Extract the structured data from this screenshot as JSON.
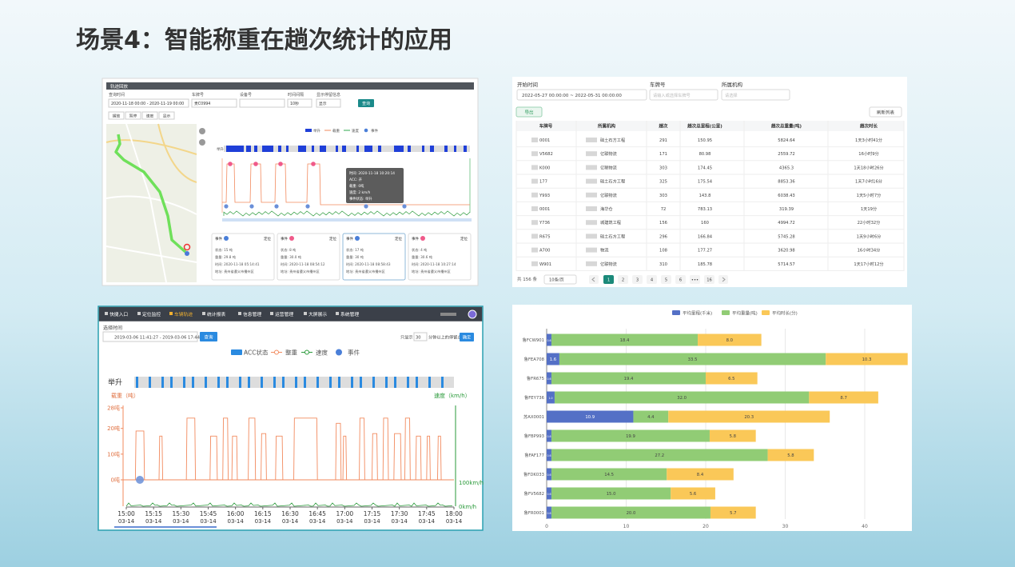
{
  "title": "场景4：智能称重在趟次统计的应用",
  "track_panel": {
    "header": "轨迹回放",
    "filter_labels": [
      "查询时间",
      "车牌号",
      "设备号",
      "时间间隔",
      "显示停留信息"
    ],
    "filter_values": [
      "2020-11-18 00:00 - 2020-11-19 00:00",
      "贵C0994",
      "10秒",
      "显示"
    ],
    "query_button": "查询",
    "toolbar": [
      "播放",
      "暂停",
      "速度",
      "显示"
    ],
    "legend": [
      "举升",
      "载重",
      "速度",
      "事件"
    ],
    "tooltip": [
      "时间: 2020-11-18 10:20:14",
      "ACC: 开",
      "载重: 0吨",
      "速度: 2 km/h",
      "事件状态: 举升"
    ],
    "cards": [
      {
        "title": "事件",
        "action": "定位",
        "lines": [
          "状态: 15 吨",
          "重量: 29.8 吨",
          "时间: 2020-11-18 05:14:41",
          "地址: 贵州省遵义市播州区"
        ]
      },
      {
        "title": "事件",
        "action": "定位",
        "lines": [
          "状态: 8 吨",
          "重量: 30.0 吨",
          "时间: 2020-11-18 08:54:12",
          "地址: 贵州省遵义市播州区"
        ]
      },
      {
        "title": "事件",
        "action": "定位",
        "lines": [
          "状态: 17 吨",
          "重量: 30 吨",
          "时间: 2020-11-18 08:58:43",
          "地址: 贵州省遵义市播州区"
        ]
      },
      {
        "title": "事件",
        "action": "定位",
        "lines": [
          "状态: 4 吨",
          "重量: 30.6 吨",
          "时间: 2020-11-18 10:27:14",
          "地址: 贵州省遵义市播州区"
        ]
      }
    ]
  },
  "table_panel": {
    "filter_labels": [
      "开始时间",
      "车牌号",
      "所属机构"
    ],
    "date_range": "2022-05-27 00:00:00  ~  2022-05-31 00:00:00",
    "plate_placeholder": "请输入或选择车牌号",
    "org_placeholder": "请选择",
    "export_button": "导出",
    "refresh_button": "刷新列表",
    "headers": [
      "车牌号",
      "所属机构",
      "趟次",
      "趟次总里程(公里)",
      "趟次总重量(吨)",
      "趟次时长"
    ],
    "rows": [
      [
        "0001",
        "础土石方工程",
        "291",
        "150.95",
        "5824.64",
        "1天3小时41分"
      ],
      [
        "V5682",
        "亿联物流",
        "171",
        "80.98",
        "2559.72",
        "16小时9分"
      ],
      [
        "K000",
        "亿联物流",
        "303",
        "174.45",
        "4365.3",
        "1天18小时26分"
      ],
      [
        "177",
        "础土石方工程",
        "325",
        "175.54",
        "8853.36",
        "1天7小时16分"
      ],
      [
        "Y993",
        "亿联物流",
        "303",
        "143.8",
        "6038.43",
        "1天5小时7分"
      ],
      [
        "0001",
        "海华仓",
        "72",
        "783.13",
        "319.39",
        "1天19分"
      ],
      [
        "Y736",
        "城建筑工程",
        "156",
        "160",
        "4994.72",
        "22小时32分"
      ],
      [
        "R675",
        "础土石方工程",
        "296",
        "166.84",
        "5745.28",
        "1天9小时6分"
      ],
      [
        "A700",
        "物流",
        "108",
        "177.27",
        "3620.98",
        "16小时34分"
      ],
      [
        "W901",
        "亿联物流",
        "310",
        "185.78",
        "5714.57",
        "1天17小时12分"
      ]
    ],
    "total": "共 156 条",
    "page_size": "10条/页",
    "pages": [
      "1",
      "2",
      "3",
      "4",
      "5",
      "6",
      "•••",
      "16"
    ]
  },
  "trend_panel": {
    "nav": [
      "快捷入口",
      "定位监控",
      "车辆轨迹",
      "统计报表",
      "信息管理",
      "运营管理",
      "大屏展示",
      "系统管理"
    ],
    "time_label": "选择时间",
    "time_range": "2019-03-06 11:41:27 - 2019-03-06 17:44:03",
    "query_button": "查询",
    "stay_prefix": "只显示",
    "stay_value": "30",
    "stay_suffix": "分钟以上的停留点",
    "confirm_button": "确定",
    "legend": [
      "ACC状态",
      "整重",
      "速度",
      "事件"
    ],
    "lift_label": "举升",
    "load_axis_label": "载重（吨）",
    "speed_axis_label": "速度（km/h）",
    "ylim": [
      0,
      28
    ],
    "yticks": [
      {
        "value": 0,
        "label": "0吨"
      },
      {
        "value": 10,
        "label": "10吨"
      },
      {
        "value": 20,
        "label": "20吨"
      },
      {
        "value": 28,
        "label": "28吨"
      }
    ],
    "speed_ticks": [
      "100km/h",
      "0km/h"
    ],
    "xlim": [
      900,
      1080
    ],
    "xticks": [
      {
        "value": 900,
        "label": "15:00"
      },
      {
        "value": 915,
        "label": "15:15"
      },
      {
        "value": 930,
        "label": "15:30"
      },
      {
        "value": 945,
        "label": "15:45"
      },
      {
        "value": 960,
        "label": "16:00"
      },
      {
        "value": 975,
        "label": "16:15"
      },
      {
        "value": 990,
        "label": "16:30"
      },
      {
        "value": 1005,
        "label": "16:45"
      },
      {
        "value": 1020,
        "label": "17:00"
      },
      {
        "value": 1035,
        "label": "17:15"
      },
      {
        "value": 1050,
        "label": "17:30"
      },
      {
        "value": 1065,
        "label": "17:45"
      },
      {
        "value": 1080,
        "label": "18:00"
      }
    ],
    "xtick_date": "03-14",
    "load_pulses": [
      {
        "start": 905,
        "end": 910,
        "peak": 19
      },
      {
        "start": 918,
        "end": 920,
        "peak": 17
      },
      {
        "start": 933,
        "end": 938,
        "peak": 24
      },
      {
        "start": 946,
        "end": 950,
        "peak": 17
      },
      {
        "start": 953,
        "end": 956,
        "peak": 24
      },
      {
        "start": 958,
        "end": 961,
        "peak": 17
      },
      {
        "start": 967,
        "end": 971,
        "peak": 24
      },
      {
        "start": 974,
        "end": 977,
        "peak": 18
      },
      {
        "start": 982,
        "end": 986,
        "peak": 17
      },
      {
        "start": 992,
        "end": 1005,
        "peak": 24
      },
      {
        "start": 1015,
        "end": 1018,
        "peak": 22
      },
      {
        "start": 1019,
        "end": 1021,
        "peak": 17
      },
      {
        "start": 1028,
        "end": 1031,
        "peak": 24
      },
      {
        "start": 1035,
        "end": 1038,
        "peak": 18
      },
      {
        "start": 1041,
        "end": 1044,
        "peak": 24
      },
      {
        "start": 1047,
        "end": 1051,
        "peak": 18
      },
      {
        "start": 1053,
        "end": 1056,
        "peak": 24
      },
      {
        "start": 1059,
        "end": 1062,
        "peak": 17
      },
      {
        "start": 1065,
        "end": 1067,
        "peak": 17
      },
      {
        "start": 1071,
        "end": 1073,
        "peak": 17
      }
    ]
  },
  "bar_chart": {
    "type": "stacked-bar-horizontal",
    "categories": [
      "鲁FCW901",
      "鲁FEA708",
      "鲁FR675",
      "鲁FEY736",
      "苏AX0001",
      "鲁FBP993",
      "鲁FAF177",
      "鲁FDK033",
      "鲁FV5682",
      "鲁FR0001"
    ],
    "series": [
      {
        "name": "平均里程(千米)",
        "color": "#5470c6",
        "values": [
          0.6,
          1.6,
          0.6,
          1.0,
          10.9,
          0.6,
          0.6,
          0.6,
          0.6,
          0.6
        ],
        "value_labels": [
          "0.6",
          "1.6",
          "0.6",
          "1.0",
          "10.9",
          "0.6",
          "0.6",
          "0.6",
          "0.6",
          "0.6"
        ]
      },
      {
        "name": "平均重量(吨)",
        "color": "#91cc75",
        "values": [
          18.4,
          33.5,
          19.4,
          32.0,
          4.4,
          19.9,
          27.2,
          14.5,
          15.0,
          20.0
        ],
        "value_labels": [
          "18.4",
          "33.5",
          "19.4",
          "32.0",
          "4.4",
          "19.9",
          "27.2",
          "14.5",
          "15.0",
          "20.0"
        ]
      },
      {
        "name": "平均时长(分)",
        "color": "#fac858",
        "values": [
          8.0,
          10.3,
          6.5,
          8.7,
          20.3,
          5.8,
          5.8,
          8.4,
          5.6,
          5.7
        ],
        "value_labels": [
          "8.0",
          "10.3",
          "6.5",
          "8.7",
          "20.3",
          "5.8",
          "5.8",
          "8.4",
          "5.6",
          "5.7"
        ]
      }
    ],
    "xlim": [
      0,
      45.5
    ],
    "xticks": [
      0,
      10,
      20,
      30,
      40
    ],
    "grid": true
  }
}
